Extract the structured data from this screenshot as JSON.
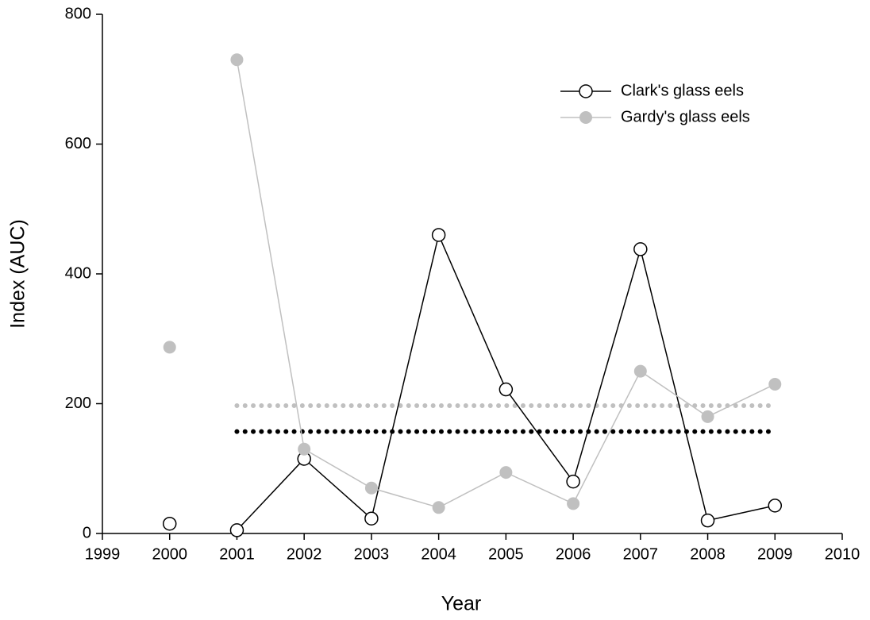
{
  "chart_data": {
    "type": "line",
    "xlabel": "Year",
    "ylabel": "Index (AUC)",
    "x": [
      2000,
      null,
      2001,
      2002,
      2003,
      2004,
      2005,
      2006,
      2007,
      2008,
      2009
    ],
    "series": [
      {
        "name": "Clark's glass eels",
        "color": "#000000",
        "marker": "open",
        "values": [
          15,
          null,
          5,
          115,
          23,
          460,
          222,
          80,
          438,
          20,
          43
        ]
      },
      {
        "name": "Gardy's glass eels",
        "color": "#c0c0c0",
        "marker": "filled",
        "values": [
          287,
          null,
          730,
          130,
          70,
          40,
          94,
          46,
          250,
          180,
          230
        ]
      }
    ],
    "reference_lines": [
      {
        "value": 197,
        "color": "#c0c0c0",
        "x": [
          2001,
          2009
        ]
      },
      {
        "value": 157,
        "color": "#000000",
        "x": [
          2001,
          2009
        ]
      }
    ],
    "xlim": [
      1999,
      2010
    ],
    "xticks": [
      1999,
      2000,
      2001,
      2002,
      2003,
      2004,
      2005,
      2006,
      2007,
      2008,
      2009,
      2010
    ],
    "ylim": [
      0,
      800
    ],
    "yticks": [
      0,
      200,
      400,
      600,
      800
    ],
    "legend": "upper right"
  }
}
